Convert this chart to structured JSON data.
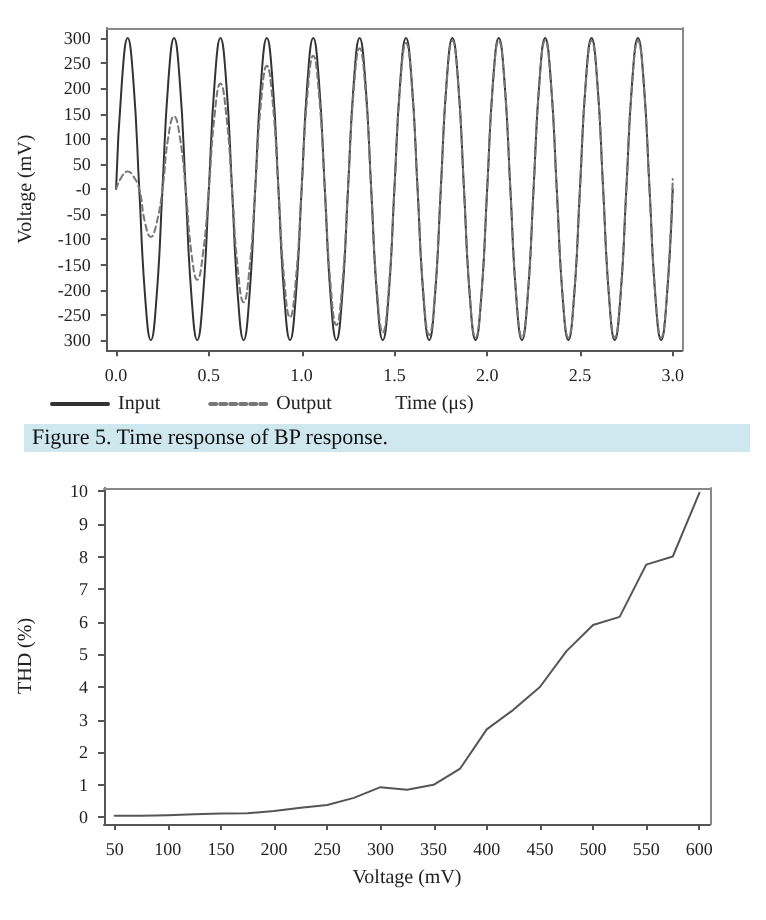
{
  "chart_data": [
    {
      "type": "line",
      "xlabel": "Time (μs)",
      "ylabel": "Voltage (mV)",
      "annotations": [
        "Figure 5. Time response of BP response."
      ],
      "x": [
        0,
        0.03125,
        0.0625,
        0.09375,
        0.125,
        0.15625,
        0.1875,
        0.21875,
        0.25,
        0.28125,
        0.3125,
        0.34375,
        0.375,
        0.40625,
        0.4375,
        0.46875,
        0.5,
        0.53125,
        0.5625,
        0.59375,
        0.625,
        0.65625,
        0.6875,
        0.71875,
        0.75,
        0.78125,
        0.8125,
        0.84375,
        0.875,
        0.90625,
        0.9375,
        0.96875,
        1,
        1.03125,
        1.0625,
        1.09375,
        1.125,
        1.15625,
        1.1875,
        1.21875,
        1.25,
        1.28125,
        1.3125,
        1.34375,
        1.375,
        1.40625,
        1.4375,
        1.46875,
        1.5,
        1.53125,
        1.5625,
        1.59375,
        1.625,
        1.65625,
        1.6875,
        1.71875,
        1.75,
        1.78125,
        1.8125,
        1.84375,
        1.875,
        1.90625,
        1.9375,
        1.96875,
        2,
        2.03125,
        2.0625,
        2.09375,
        2.125,
        2.15625,
        2.1875,
        2.21875,
        2.25,
        2.28125,
        2.3125,
        2.34375,
        2.375,
        2.40625,
        2.4375,
        2.46875,
        2.5,
        2.53125,
        2.5625,
        2.59375,
        2.625,
        2.65625,
        2.6875,
        2.71875,
        2.75,
        2.78125,
        2.8125,
        2.84375,
        2.875,
        2.90625,
        2.9375,
        2.96875,
        3
      ],
      "series": [
        {
          "name": "Input",
          "color": "#333333",
          "line_style": "solid",
          "values": [
            0,
            212,
            300,
            212,
            0,
            -212,
            -300,
            -212,
            0,
            212,
            300,
            212,
            0,
            -212,
            -300,
            -212,
            0,
            212,
            300,
            212,
            0,
            -212,
            -300,
            -212,
            0,
            212,
            300,
            212,
            0,
            -212,
            -300,
            -212,
            0,
            212,
            300,
            212,
            0,
            -212,
            -300,
            -212,
            0,
            212,
            300,
            212,
            0,
            -212,
            -300,
            -212,
            0,
            212,
            300,
            212,
            0,
            -212,
            -300,
            -212,
            0,
            212,
            300,
            212,
            0,
            -212,
            -300,
            -212,
            0,
            212,
            300,
            212,
            0,
            -212,
            -300,
            -212,
            0,
            212,
            300,
            212,
            0,
            -212,
            -300,
            -212,
            0,
            212,
            300,
            212,
            0,
            -212,
            -300,
            -212,
            0,
            212,
            300,
            212,
            0,
            -212,
            -300,
            -212,
            0
          ]
        },
        {
          "name": "Output",
          "color": "#777777",
          "line_style": "dashed",
          "values": [
            0,
            25,
            35,
            25,
            0,
            -67,
            -95,
            -67,
            0,
            103,
            145,
            103,
            0,
            -127,
            -180,
            -127,
            0,
            148,
            210,
            148,
            0,
            -159,
            -225,
            -159,
            0,
            173,
            245,
            173,
            0,
            -180,
            -255,
            -180,
            0,
            187,
            265,
            187,
            0,
            -191,
            -270,
            -191,
            0,
            198,
            280,
            198,
            0,
            -201,
            -285,
            -201,
            0,
            205,
            290,
            205,
            0,
            -205,
            -290,
            -205,
            0,
            209,
            295,
            209,
            0,
            -209,
            -295,
            -209,
            0,
            209,
            295,
            209,
            0,
            -209,
            -295,
            -209,
            0,
            209,
            295,
            209,
            0,
            -209,
            -295,
            -209,
            0,
            209,
            295,
            209,
            0,
            -209,
            -295,
            -209,
            0,
            209,
            295,
            209,
            0,
            -209,
            -295,
            -209,
            20
          ]
        }
      ],
      "xlim": [
        -0.05,
        3.05
      ],
      "xticks": [
        {
          "value": 0,
          "label": "0.0"
        },
        {
          "value": 0.5,
          "label": "0.5"
        },
        {
          "value": 1,
          "label": "1.0"
        },
        {
          "value": 1.5,
          "label": "1.5"
        },
        {
          "value": 2,
          "label": "2.0"
        },
        {
          "value": 2.5,
          "label": "2.5"
        },
        {
          "value": 3,
          "label": "3.0"
        }
      ],
      "ylim": [
        -320,
        320
      ],
      "yticks": [
        {
          "value": -300,
          "label": "300"
        },
        -250,
        -200,
        -150,
        -100,
        -50,
        {
          "value": 0,
          "label": "-0"
        },
        50,
        100,
        150,
        200,
        250,
        300
      ],
      "grid": false,
      "legend": "bottom left",
      "marker": "none"
    },
    {
      "type": "line",
      "xlabel": "Voltage (mV)",
      "ylabel": "THD (%)",
      "x": [
        50,
        75,
        100,
        125,
        150,
        175,
        200,
        225,
        250,
        275,
        300,
        325,
        350,
        375,
        400,
        425,
        450,
        475,
        500,
        525,
        550,
        575,
        600
      ],
      "series": [
        {
          "color": "#555555",
          "line_style": "solid",
          "values": [
            0.05,
            0.05,
            0.07,
            0.1,
            0.12,
            0.13,
            0.2,
            0.3,
            0.38,
            0.6,
            0.93,
            0.85,
            1.0,
            1.5,
            2.7,
            3.3,
            4.0,
            5.1,
            5.9,
            6.15,
            7.75,
            8.0,
            9.95
          ]
        }
      ],
      "xlim": [
        40,
        610
      ],
      "xticks": [
        50,
        100,
        150,
        200,
        250,
        300,
        350,
        400,
        450,
        500,
        550,
        600
      ],
      "ylim": [
        -0.2,
        10.1
      ],
      "yticks": [
        0,
        1,
        2,
        3,
        4,
        5,
        6,
        7,
        8,
        9,
        10
      ],
      "grid": false,
      "legend": false,
      "marker": "none"
    }
  ]
}
